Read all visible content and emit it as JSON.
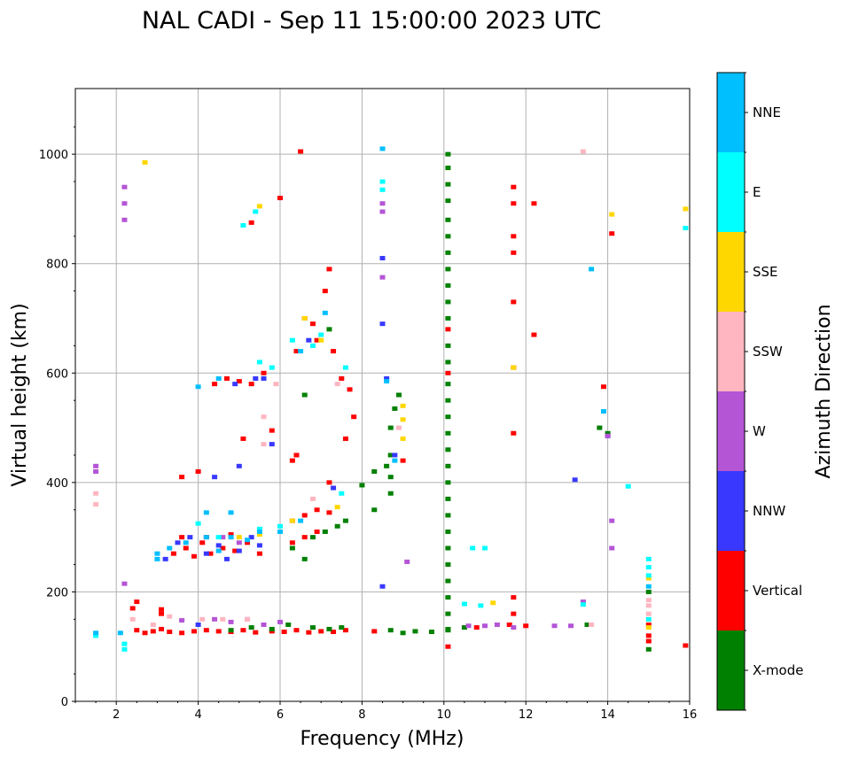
{
  "chart_data": {
    "type": "scatter",
    "title": "NAL CADI - Sep 11 15:00:00 2023 UTC",
    "xlabel": "Frequency (MHz)",
    "ylabel": "Virtual height (km)",
    "xlim": [
      1,
      16
    ],
    "ylim": [
      0,
      1120
    ],
    "xticks": [
      2,
      4,
      6,
      8,
      10,
      12,
      14,
      16
    ],
    "yticks": [
      0,
      200,
      400,
      600,
      800,
      1000
    ],
    "grid": true,
    "colorbar": {
      "label": "Azimuth Direction",
      "categories": [
        {
          "name": "X-mode",
          "color": "#008000"
        },
        {
          "name": "Vertical",
          "color": "#ff0000"
        },
        {
          "name": "NNW",
          "color": "#3838ff"
        },
        {
          "name": "W",
          "color": "#b455d6"
        },
        {
          "name": "SSW",
          "color": "#ffb6c1"
        },
        {
          "name": "SSE",
          "color": "#ffd700"
        },
        {
          "name": "E",
          "color": "#00ffff"
        },
        {
          "name": "NNE",
          "color": "#00bfff"
        }
      ]
    },
    "series": [
      {
        "name": "Vertical",
        "points": [
          [
            2.5,
            130
          ],
          [
            2.7,
            125
          ],
          [
            2.9,
            128
          ],
          [
            3.1,
            132
          ],
          [
            3.3,
            127
          ],
          [
            3.6,
            125
          ],
          [
            3.9,
            128
          ],
          [
            4.2,
            130
          ],
          [
            4.5,
            128
          ],
          [
            4.8,
            127
          ],
          [
            5.1,
            130
          ],
          [
            5.4,
            126
          ],
          [
            5.8,
            128
          ],
          [
            6.1,
            127
          ],
          [
            6.4,
            130
          ],
          [
            6.7,
            126
          ],
          [
            7.0,
            128
          ],
          [
            7.3,
            127
          ],
          [
            7.6,
            130
          ],
          [
            8.3,
            128
          ],
          [
            2.4,
            170
          ],
          [
            2.5,
            182
          ],
          [
            3.1,
            168
          ],
          [
            3.1,
            160
          ],
          [
            3.4,
            270
          ],
          [
            3.7,
            280
          ],
          [
            3.9,
            265
          ],
          [
            4.1,
            290
          ],
          [
            4.3,
            270
          ],
          [
            4.6,
            280
          ],
          [
            4.9,
            275
          ],
          [
            5.2,
            290
          ],
          [
            5.5,
            270
          ],
          [
            3.6,
            300
          ],
          [
            4.2,
            300
          ],
          [
            4.8,
            305
          ],
          [
            6.3,
            330
          ],
          [
            6.6,
            340
          ],
          [
            6.9,
            350
          ],
          [
            7.2,
            345
          ],
          [
            6.3,
            290
          ],
          [
            6.6,
            300
          ],
          [
            6.9,
            310
          ],
          [
            7.2,
            400
          ],
          [
            4.4,
            580
          ],
          [
            4.7,
            590
          ],
          [
            5.0,
            585
          ],
          [
            5.3,
            580
          ],
          [
            5.6,
            600
          ],
          [
            6.4,
            640
          ],
          [
            6.6,
            700
          ],
          [
            6.8,
            690
          ],
          [
            6.9,
            660
          ],
          [
            7.1,
            750
          ],
          [
            7.2,
            790
          ],
          [
            7.3,
            640
          ],
          [
            7.5,
            590
          ],
          [
            7.7,
            570
          ],
          [
            7.8,
            520
          ],
          [
            7.6,
            480
          ],
          [
            6.4,
            450
          ],
          [
            6.3,
            440
          ],
          [
            5.8,
            495
          ],
          [
            5.1,
            480
          ],
          [
            4.0,
            420
          ],
          [
            3.6,
            410
          ],
          [
            9.0,
            440
          ],
          [
            6.5,
            1005
          ],
          [
            6.0,
            920
          ],
          [
            5.3,
            875
          ],
          [
            10.1,
            680
          ],
          [
            10.1,
            600
          ],
          [
            10.1,
            100
          ],
          [
            10.8,
            135
          ],
          [
            11.7,
            940
          ],
          [
            11.7,
            910
          ],
          [
            11.7,
            850
          ],
          [
            11.7,
            820
          ],
          [
            11.7,
            730
          ],
          [
            11.7,
            610
          ],
          [
            11.7,
            490
          ],
          [
            11.7,
            190
          ],
          [
            11.7,
            160
          ],
          [
            12.2,
            910
          ],
          [
            12.2,
            670
          ],
          [
            13.9,
            575
          ],
          [
            14.1,
            855
          ],
          [
            15.0,
            120
          ],
          [
            15.0,
            110
          ],
          [
            15.0,
            140
          ],
          [
            15.9,
            102
          ],
          [
            11.6,
            140
          ],
          [
            12.0,
            138
          ]
        ]
      },
      {
        "name": "X-mode",
        "points": [
          [
            8.7,
            130
          ],
          [
            9.0,
            125
          ],
          [
            9.3,
            128
          ],
          [
            9.7,
            127
          ],
          [
            10.1,
            130
          ],
          [
            10.1,
            1000
          ],
          [
            10.1,
            975
          ],
          [
            10.1,
            945
          ],
          [
            10.1,
            915
          ],
          [
            10.1,
            880
          ],
          [
            10.1,
            850
          ],
          [
            10.1,
            820
          ],
          [
            10.1,
            790
          ],
          [
            10.1,
            760
          ],
          [
            10.1,
            730
          ],
          [
            10.1,
            700
          ],
          [
            10.1,
            650
          ],
          [
            10.1,
            620
          ],
          [
            10.1,
            580
          ],
          [
            10.1,
            550
          ],
          [
            10.1,
            520
          ],
          [
            10.1,
            490
          ],
          [
            10.1,
            460
          ],
          [
            10.1,
            430
          ],
          [
            10.1,
            400
          ],
          [
            10.1,
            370
          ],
          [
            10.1,
            340
          ],
          [
            10.1,
            310
          ],
          [
            10.1,
            280
          ],
          [
            10.1,
            250
          ],
          [
            10.1,
            220
          ],
          [
            10.1,
            190
          ],
          [
            10.1,
            160
          ],
          [
            8.7,
            380
          ],
          [
            8.7,
            410
          ],
          [
            8.7,
            450
          ],
          [
            8.7,
            500
          ],
          [
            8.8,
            535
          ],
          [
            8.9,
            560
          ],
          [
            8.6,
            430
          ],
          [
            8.3,
            420
          ],
          [
            8.3,
            350
          ],
          [
            8.0,
            395
          ],
          [
            7.6,
            330
          ],
          [
            7.4,
            320
          ],
          [
            7.1,
            310
          ],
          [
            6.8,
            300
          ],
          [
            6.6,
            260
          ],
          [
            6.3,
            280
          ],
          [
            6.6,
            560
          ],
          [
            7.2,
            680
          ],
          [
            4.8,
            130
          ],
          [
            5.3,
            135
          ],
          [
            5.8,
            132
          ],
          [
            6.2,
            140
          ],
          [
            6.8,
            135
          ],
          [
            7.2,
            132
          ],
          [
            7.5,
            135
          ],
          [
            10.1,
            132
          ],
          [
            10.5,
            135
          ],
          [
            13.8,
            500
          ],
          [
            13.5,
            140
          ],
          [
            15.0,
            200
          ],
          [
            15.0,
            95
          ],
          [
            14.0,
            490
          ]
        ]
      },
      {
        "name": "NNW",
        "points": [
          [
            3.5,
            290
          ],
          [
            3.8,
            300
          ],
          [
            4.2,
            270
          ],
          [
            4.5,
            285
          ],
          [
            4.7,
            260
          ],
          [
            5.0,
            275
          ],
          [
            5.3,
            300
          ],
          [
            5.5,
            285
          ],
          [
            3.2,
            260
          ],
          [
            4.9,
            580
          ],
          [
            5.4,
            590
          ],
          [
            5.6,
            590
          ],
          [
            6.7,
            660
          ],
          [
            7.3,
            390
          ],
          [
            8.5,
            810
          ],
          [
            8.5,
            690
          ],
          [
            8.5,
            210
          ],
          [
            8.6,
            590
          ],
          [
            8.8,
            450
          ],
          [
            13.2,
            405
          ],
          [
            14.0,
            485
          ],
          [
            4.0,
            140
          ],
          [
            5.8,
            470
          ],
          [
            4.4,
            410
          ],
          [
            5.0,
            430
          ]
        ]
      },
      {
        "name": "W",
        "points": [
          [
            1.5,
            430
          ],
          [
            1.5,
            420
          ],
          [
            2.2,
            940
          ],
          [
            2.2,
            910
          ],
          [
            2.2,
            880
          ],
          [
            2.2,
            215
          ],
          [
            4.4,
            150
          ],
          [
            4.8,
            145
          ],
          [
            5.2,
            150
          ],
          [
            5.6,
            140
          ],
          [
            6.0,
            145
          ],
          [
            3.6,
            148
          ],
          [
            8.5,
            910
          ],
          [
            8.5,
            895
          ],
          [
            8.5,
            775
          ],
          [
            9.1,
            255
          ],
          [
            10.6,
            138
          ],
          [
            11.0,
            138
          ],
          [
            11.3,
            140
          ],
          [
            11.7,
            135
          ],
          [
            12.7,
            138
          ],
          [
            13.1,
            138
          ],
          [
            13.4,
            182
          ],
          [
            14.1,
            330
          ],
          [
            14.1,
            280
          ],
          [
            14.0,
            485
          ],
          [
            4.6,
            300
          ],
          [
            5.0,
            290
          ]
        ]
      },
      {
        "name": "SSW",
        "points": [
          [
            1.5,
            380
          ],
          [
            1.5,
            360
          ],
          [
            2.4,
            150
          ],
          [
            2.9,
            140
          ],
          [
            3.3,
            155
          ],
          [
            4.1,
            150
          ],
          [
            4.6,
            150
          ],
          [
            5.2,
            150
          ],
          [
            5.6,
            470
          ],
          [
            5.6,
            520
          ],
          [
            5.9,
            580
          ],
          [
            7.4,
            580
          ],
          [
            6.8,
            370
          ],
          [
            8.9,
            500
          ],
          [
            13.4,
            1005
          ],
          [
            15.0,
            185
          ],
          [
            15.0,
            175
          ],
          [
            15.0,
            160
          ],
          [
            13.6,
            140
          ]
        ]
      },
      {
        "name": "SSE",
        "points": [
          [
            2.7,
            985
          ],
          [
            5.5,
            905
          ],
          [
            6.6,
            700
          ],
          [
            7.0,
            660
          ],
          [
            7.4,
            355
          ],
          [
            6.3,
            330
          ],
          [
            5.5,
            305
          ],
          [
            5.0,
            300
          ],
          [
            9.0,
            540
          ],
          [
            9.0,
            515
          ],
          [
            9.0,
            480
          ],
          [
            11.7,
            610
          ],
          [
            14.1,
            890
          ],
          [
            15.9,
            900
          ],
          [
            11.2,
            180
          ],
          [
            15.0,
            225
          ],
          [
            15.0,
            135
          ]
        ]
      },
      {
        "name": "E",
        "points": [
          [
            1.5,
            120
          ],
          [
            2.2,
            105
          ],
          [
            2.2,
            95
          ],
          [
            5.4,
            895
          ],
          [
            5.1,
            870
          ],
          [
            5.5,
            620
          ],
          [
            5.8,
            610
          ],
          [
            6.3,
            660
          ],
          [
            6.8,
            650
          ],
          [
            7.0,
            670
          ],
          [
            7.6,
            610
          ],
          [
            7.5,
            380
          ],
          [
            6.0,
            320
          ],
          [
            5.5,
            315
          ],
          [
            4.5,
            300
          ],
          [
            4.0,
            325
          ],
          [
            8.5,
            950
          ],
          [
            8.5,
            935
          ],
          [
            10.7,
            280
          ],
          [
            11.0,
            280
          ],
          [
            10.5,
            178
          ],
          [
            10.9,
            175
          ],
          [
            13.4,
            177
          ],
          [
            14.5,
            393
          ],
          [
            15.0,
            260
          ],
          [
            15.0,
            245
          ],
          [
            15.0,
            230
          ],
          [
            15.0,
            150
          ],
          [
            15.9,
            865
          ],
          [
            13.9,
            530
          ]
        ]
      },
      {
        "name": "NNE",
        "points": [
          [
            1.5,
            125
          ],
          [
            2.1,
            125
          ],
          [
            3.0,
            270
          ],
          [
            3.0,
            260
          ],
          [
            3.3,
            280
          ],
          [
            3.7,
            290
          ],
          [
            4.2,
            300
          ],
          [
            4.5,
            275
          ],
          [
            4.8,
            300
          ],
          [
            5.2,
            295
          ],
          [
            5.5,
            310
          ],
          [
            6.0,
            310
          ],
          [
            6.5,
            640
          ],
          [
            4.0,
            575
          ],
          [
            4.5,
            590
          ],
          [
            7.1,
            710
          ],
          [
            8.5,
            1010
          ],
          [
            8.6,
            585
          ],
          [
            8.8,
            440
          ],
          [
            13.6,
            790
          ],
          [
            13.9,
            530
          ],
          [
            15.0,
            210
          ],
          [
            4.2,
            345
          ],
          [
            4.8,
            345
          ],
          [
            6.5,
            330
          ]
        ]
      }
    ]
  }
}
